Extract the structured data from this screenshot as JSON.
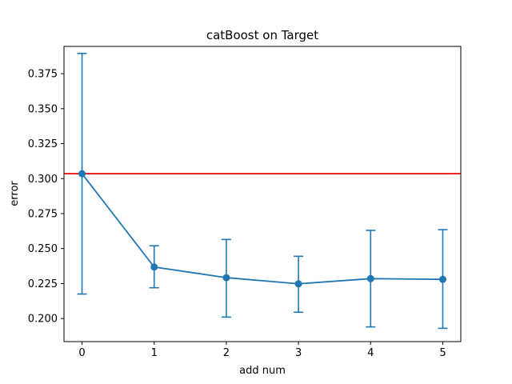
{
  "chart_data": {
    "type": "line",
    "title": "catBoost on Target",
    "xlabel": "add num",
    "ylabel": "error",
    "xlim": [
      -0.25,
      5.25
    ],
    "ylim": [
      0.1835,
      0.3945
    ],
    "xticks": [
      0,
      1,
      2,
      3,
      4,
      5
    ],
    "xtick_labels": [
      "0",
      "1",
      "2",
      "3",
      "4",
      "5"
    ],
    "yticks": [
      0.2,
      0.225,
      0.25,
      0.275,
      0.3,
      0.325,
      0.35,
      0.375
    ],
    "ytick_labels": [
      "0.200",
      "0.225",
      "0.250",
      "0.275",
      "0.300",
      "0.325",
      "0.350",
      "0.375"
    ],
    "grid": false,
    "series": [
      {
        "x": [
          0,
          1,
          2,
          3,
          4,
          5
        ],
        "y": [
          0.3035,
          0.2368,
          0.2292,
          0.2248,
          0.2285,
          0.228
        ],
        "yerr_lower": [
          0.2175,
          0.222,
          0.201,
          0.2045,
          0.194,
          0.193
        ],
        "yerr_upper": [
          0.3895,
          0.252,
          0.2565,
          0.2445,
          0.263,
          0.2635
        ],
        "color": "#1f77b4",
        "marker": "circle"
      }
    ],
    "hlines": [
      {
        "y": 0.3035,
        "color": "#e60000"
      }
    ]
  }
}
